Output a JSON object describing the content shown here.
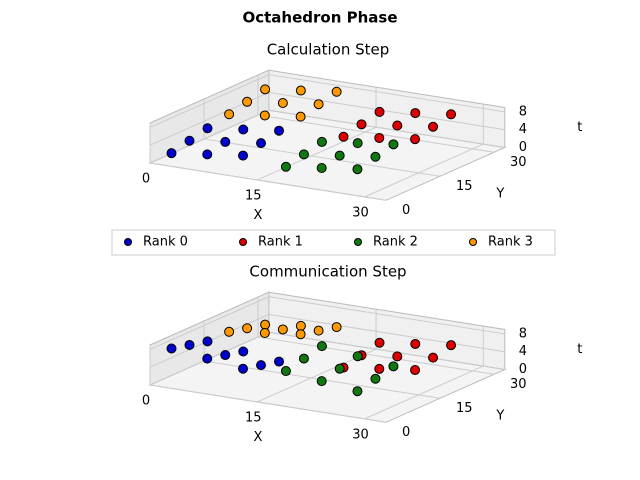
{
  "title": "Octahedron Phase",
  "legend": [
    {
      "name": "Rank 0",
      "color": "#0000cc"
    },
    {
      "name": "Rank 1",
      "color": "#dd0000"
    },
    {
      "name": "Rank 2",
      "color": "#117711"
    },
    {
      "name": "Rank 3",
      "color": "#ff9900"
    }
  ],
  "chart_data": [
    {
      "type": "scatter3d",
      "title": "Calculation Step",
      "xlabel": "X",
      "ylabel": "Y",
      "zlabel": "t",
      "xlim": [
        0,
        33
      ],
      "ylim": [
        0,
        33
      ],
      "zlim": [
        0,
        9
      ],
      "xticks": [
        0,
        15,
        30
      ],
      "yticks": [
        0,
        15,
        30
      ],
      "zticks": [
        0,
        4,
        8
      ],
      "series": [
        {
          "points": [
            [
              2,
              2,
              2
            ],
            [
              7,
              2,
              3
            ],
            [
              12,
              2,
              4
            ],
            [
              2,
              7,
              3
            ],
            [
              7,
              7,
              4
            ],
            [
              12,
              7,
              5
            ],
            [
              2,
              12,
              4
            ],
            [
              7,
              12,
              5
            ],
            [
              12,
              12,
              6
            ]
          ]
        },
        {
          "points": [
            [
              18,
              18,
              4
            ],
            [
              23,
              18,
              5
            ],
            [
              28,
              18,
              6
            ],
            [
              18,
              23,
              5
            ],
            [
              23,
              23,
              6
            ],
            [
              28,
              23,
              7
            ],
            [
              18,
              28,
              6
            ],
            [
              23,
              28,
              7
            ],
            [
              28,
              28,
              8
            ]
          ]
        },
        {
          "points": [
            [
              18,
              2,
              3
            ],
            [
              23,
              2,
              4
            ],
            [
              28,
              2,
              5
            ],
            [
              18,
              7,
              4
            ],
            [
              23,
              7,
              5
            ],
            [
              28,
              7,
              6
            ],
            [
              18,
              12,
              5
            ],
            [
              23,
              12,
              6
            ],
            [
              28,
              12,
              7
            ]
          ]
        },
        {
          "points": [
            [
              2,
              18,
              5
            ],
            [
              7,
              18,
              6
            ],
            [
              12,
              18,
              7
            ],
            [
              2,
              23,
              6
            ],
            [
              7,
              23,
              7
            ],
            [
              12,
              23,
              8
            ],
            [
              2,
              28,
              7
            ],
            [
              7,
              28,
              8
            ],
            [
              12,
              28,
              9
            ]
          ]
        }
      ]
    },
    {
      "type": "scatter3d",
      "title": "Communication Step",
      "xlabel": "X",
      "ylabel": "Y",
      "zlabel": "t",
      "xlim": [
        0,
        33
      ],
      "ylim": [
        0,
        33
      ],
      "zlim": [
        0,
        9
      ],
      "xticks": [
        0,
        15,
        30
      ],
      "yticks": [
        0,
        15,
        30
      ],
      "zticks": [
        0,
        4,
        8
      ],
      "series": [
        {
          "points": [
            [
              2,
              2,
              8
            ],
            [
              7,
              2,
              7
            ],
            [
              12,
              2,
              6
            ],
            [
              2,
              7,
              7
            ],
            [
              7,
              7,
              6
            ],
            [
              12,
              7,
              5
            ],
            [
              2,
              12,
              6
            ],
            [
              7,
              12,
              5
            ],
            [
              12,
              12,
              4
            ]
          ]
        },
        {
          "points": [
            [
              18,
              18,
              2
            ],
            [
              23,
              18,
              3
            ],
            [
              28,
              18,
              4
            ],
            [
              18,
              23,
              3
            ],
            [
              23,
              23,
              4
            ],
            [
              28,
              23,
              5
            ],
            [
              18,
              28,
              4
            ],
            [
              23,
              28,
              5
            ],
            [
              28,
              28,
              6
            ]
          ]
        },
        {
          "points": [
            [
              18,
              2,
              7
            ],
            [
              23,
              2,
              6
            ],
            [
              28,
              2,
              5
            ],
            [
              18,
              7,
              8
            ],
            [
              23,
              7,
              7
            ],
            [
              28,
              7,
              6
            ],
            [
              18,
              12,
              9
            ],
            [
              23,
              12,
              8
            ],
            [
              28,
              12,
              7
            ]
          ]
        },
        {
          "points": [
            [
              2,
              18,
              6
            ],
            [
              7,
              18,
              7
            ],
            [
              12,
              18,
              8
            ],
            [
              2,
              23,
              5
            ],
            [
              7,
              23,
              6
            ],
            [
              12,
              23,
              7
            ],
            [
              2,
              28,
              4
            ],
            [
              7,
              28,
              5
            ],
            [
              12,
              28,
              6
            ]
          ]
        }
      ]
    }
  ]
}
